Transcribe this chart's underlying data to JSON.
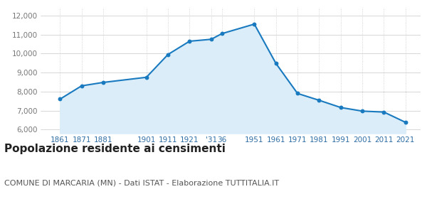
{
  "years": [
    1861,
    1871,
    1881,
    1901,
    1911,
    1921,
    1931,
    1936,
    1951,
    1961,
    1971,
    1981,
    1991,
    2001,
    2011,
    2021
  ],
  "population": [
    7600,
    8300,
    8480,
    8750,
    9950,
    10650,
    10750,
    11050,
    11550,
    9480,
    7900,
    7540,
    7160,
    6970,
    6920,
    6380
  ],
  "x_tick_positions": [
    1861,
    1871,
    1881,
    1901,
    1911,
    1921,
    1931,
    1936,
    1951,
    1961,
    1971,
    1981,
    1991,
    2001,
    2011,
    2021
  ],
  "x_tick_labels": [
    "1861",
    "1871",
    "1881",
    "1901",
    "1911",
    "1921",
    "'31",
    "36",
    "1951",
    "1961",
    "1971",
    "1981",
    "1991",
    "2001",
    "2011",
    "2021"
  ],
  "ylim": [
    5800,
    12400
  ],
  "yticks": [
    6000,
    7000,
    8000,
    9000,
    10000,
    11000,
    12000
  ],
  "ytick_labels": [
    "6,000",
    "7,000",
    "8,000",
    "9,000",
    "10,000",
    "11,000",
    "12,000"
  ],
  "xlim": [
    1852,
    2028
  ],
  "line_color": "#1a7abf",
  "fill_color": "#daedf9",
  "marker_color": "#1a7abf",
  "ygrid_color": "#c8c8c8",
  "xgrid_color": "#c8c8c8",
  "background_color": "#ffffff",
  "title": "Popolazione residente ai censimenti",
  "subtitle": "COMUNE DI MARCARIA (MN) - Dati ISTAT - Elaborazione TUTTITALIA.IT",
  "title_fontsize": 11,
  "subtitle_fontsize": 8,
  "title_color": "#222222",
  "subtitle_color": "#555555",
  "tick_label_color": "#2e6da4",
  "ytick_label_color": "#777777",
  "tick_fontsize": 7.5
}
